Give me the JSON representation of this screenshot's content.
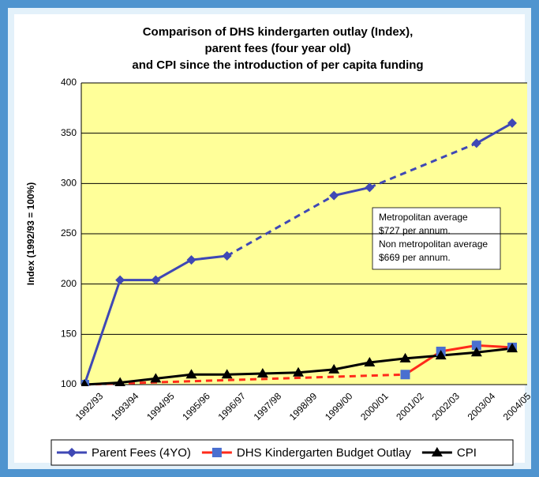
{
  "chart_data": {
    "type": "line",
    "title": [
      "Comparison of DHS kindergarten outlay (Index),",
      "parent fees (four year old)",
      "and CPI since the introduction of per capita funding"
    ],
    "ylabel": "Index (1992/93 = 100%)",
    "categories": [
      "1992/93",
      "1993/94",
      "1994/95",
      "1995/96",
      "1996/97",
      "1997/98",
      "1998/99",
      "1999/00",
      "2000/01",
      "2001/02",
      "2002/03",
      "2003/04",
      "2004/05"
    ],
    "series": [
      {
        "name": "Parent Fees (4YO)",
        "color": "#3f48b5",
        "marker": "diamond",
        "values": [
          100,
          204,
          204,
          224,
          228,
          null,
          null,
          288,
          296,
          null,
          null,
          340,
          360
        ]
      },
      {
        "name": "DHS Kindergarten Budget Outlay",
        "color": "#ff2a1a",
        "marker_color": "#4a6fd0",
        "marker": "square",
        "values": [
          100,
          null,
          null,
          null,
          null,
          null,
          null,
          null,
          null,
          110,
          133,
          139,
          137
        ]
      },
      {
        "name": "CPI",
        "color": "#000000",
        "marker": "triangle",
        "values": [
          100,
          102,
          106,
          110,
          110,
          111,
          112,
          115,
          122,
          126,
          129,
          132,
          136
        ]
      }
    ],
    "ylim": [
      100,
      400
    ],
    "yticks": [
      100,
      150,
      200,
      250,
      300,
      350,
      400
    ],
    "grid": true,
    "annotation": [
      "Metropolitan average",
      "$727 per annum.",
      "Non metropolitan average",
      "$669 per annum."
    ],
    "legend": "bottom"
  }
}
